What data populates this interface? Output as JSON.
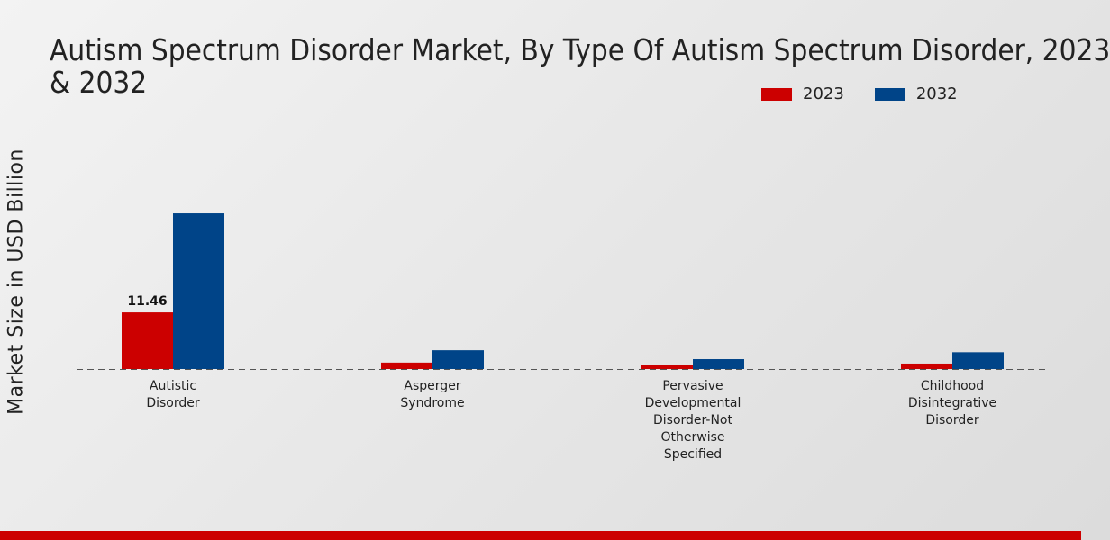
{
  "chart_data": {
    "type": "bar",
    "title_lines": [
      "Autism Spectrum Disorder Market, By Type Of Autism Spectrum Disorder, 2023",
      "& 2032"
    ],
    "ylabel": "Market Size in USD Billion",
    "xlabel": "",
    "categories": [
      [
        "Autistic",
        "Disorder"
      ],
      [
        "Asperger",
        "Syndrome"
      ],
      [
        "Pervasive",
        "Developmental",
        "Disorder-Not",
        "Otherwise",
        "Specified"
      ],
      [
        "Childhood",
        "Disintegrative",
        "Disorder"
      ]
    ],
    "series": [
      {
        "name": "2023",
        "color": "#cc0000",
        "values": [
          11.46,
          1.3,
          0.8,
          1.1
        ]
      },
      {
        "name": "2032",
        "color": "#004488",
        "values": [
          31.5,
          3.8,
          2.0,
          3.4
        ]
      }
    ],
    "data_labels": [
      {
        "series": 0,
        "index": 0,
        "text": "11.46"
      }
    ],
    "ylim": [
      0,
      55
    ],
    "grid": false,
    "legend_position": "top-right"
  }
}
